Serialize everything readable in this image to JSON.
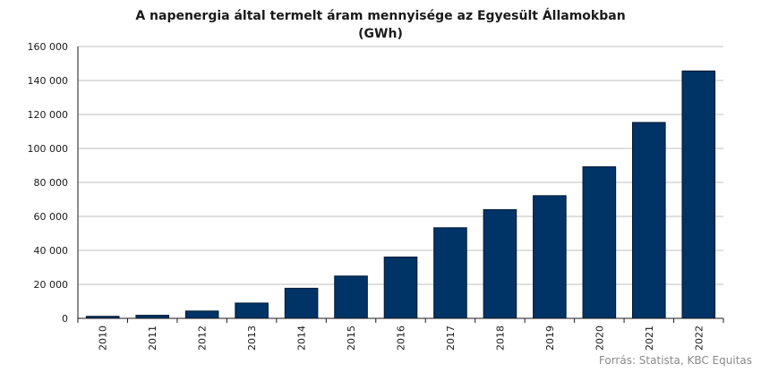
{
  "chart_data": {
    "type": "bar",
    "title": "A napenergia által termelt áram mennyisége az Egyesült Államokban",
    "subtitle": "(GWh)",
    "xlabel": "",
    "ylabel": "",
    "categories": [
      "2010",
      "2011",
      "2012",
      "2013",
      "2014",
      "2015",
      "2016",
      "2017",
      "2018",
      "2019",
      "2020",
      "2021",
      "2022"
    ],
    "values": [
      1200,
      1800,
      4300,
      9000,
      17700,
      24900,
      36100,
      53300,
      64000,
      72200,
      89200,
      115300,
      145600
    ],
    "ylim": [
      0,
      160000
    ],
    "yticks": [
      0,
      20000,
      40000,
      60000,
      80000,
      100000,
      120000,
      140000,
      160000
    ],
    "ytick_labels": [
      "0",
      "20 000",
      "40 000",
      "60 000",
      "80 000",
      "100 000",
      "120 000",
      "140 000",
      "160 000"
    ],
    "grid": true,
    "bar_color": "#003366",
    "grid_color": "#bfbfbf",
    "source": "Forrás: Statista, KBC Equitas"
  }
}
